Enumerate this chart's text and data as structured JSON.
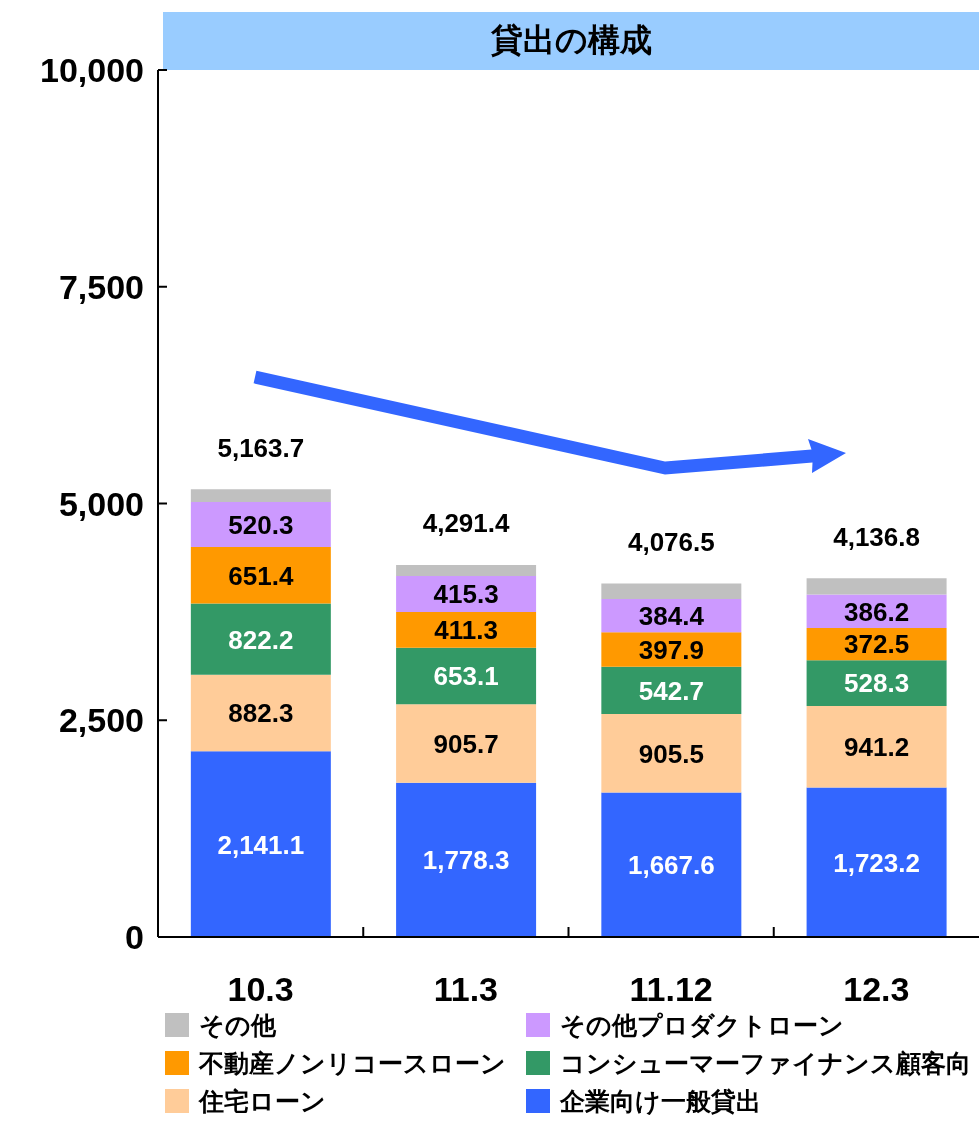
{
  "chart_data": {
    "type": "bar",
    "title": "貸出の構成",
    "categories": [
      "10.3",
      "11.3",
      "11.12",
      "12.3"
    ],
    "stacked": true,
    "series": [
      {
        "name": "企業向け一般貸出",
        "color": "#3366ff",
        "values": [
          2141.1,
          1778.3,
          1667.6,
          1723.2
        ],
        "value_labels": [
          "2,141.1",
          "1,778.3",
          "1,667.6",
          "1,723.2"
        ]
      },
      {
        "name": "住宅ローン",
        "color": "#ffcc99",
        "values": [
          882.3,
          905.7,
          905.5,
          941.2
        ],
        "value_labels": [
          "882.3",
          "905.7",
          "905.5",
          "941.2"
        ]
      },
      {
        "name": "コンシューマーファイナンス顧客向",
        "color": "#339966",
        "values": [
          822.2,
          653.1,
          542.7,
          528.3
        ],
        "value_labels": [
          "822.2",
          "653.1",
          "542.7",
          "528.3"
        ]
      },
      {
        "name": "不動産ノンリコースローン",
        "color": "#ff9900",
        "values": [
          651.4,
          411.3,
          397.9,
          372.5
        ],
        "value_labels": [
          "651.4",
          "411.3",
          "397.9",
          "372.5"
        ]
      },
      {
        "name": "その他プロダクトローン",
        "color": "#cc99ff",
        "values": [
          520.3,
          415.3,
          384.4,
          386.2
        ],
        "value_labels": [
          "520.3",
          "415.3",
          "384.4",
          "386.2"
        ]
      },
      {
        "name": "その他",
        "color": "#c0c0c0",
        "values": [
          146.4,
          127.7,
          178.4,
          185.4
        ]
      }
    ],
    "totals": [
      "5,163.7",
      "4,291.4",
      "4,076.5",
      "4,136.8"
    ],
    "ylim": [
      0,
      10000
    ],
    "yticks": [
      0,
      {
        "value": 2500,
        "label": "2,500"
      },
      {
        "value": 5000,
        "label": "5,000"
      },
      {
        "value": 7500,
        "label": "7,500"
      },
      {
        "value": 10000,
        "label": "10,000"
      }
    ],
    "legend": "bottom"
  }
}
